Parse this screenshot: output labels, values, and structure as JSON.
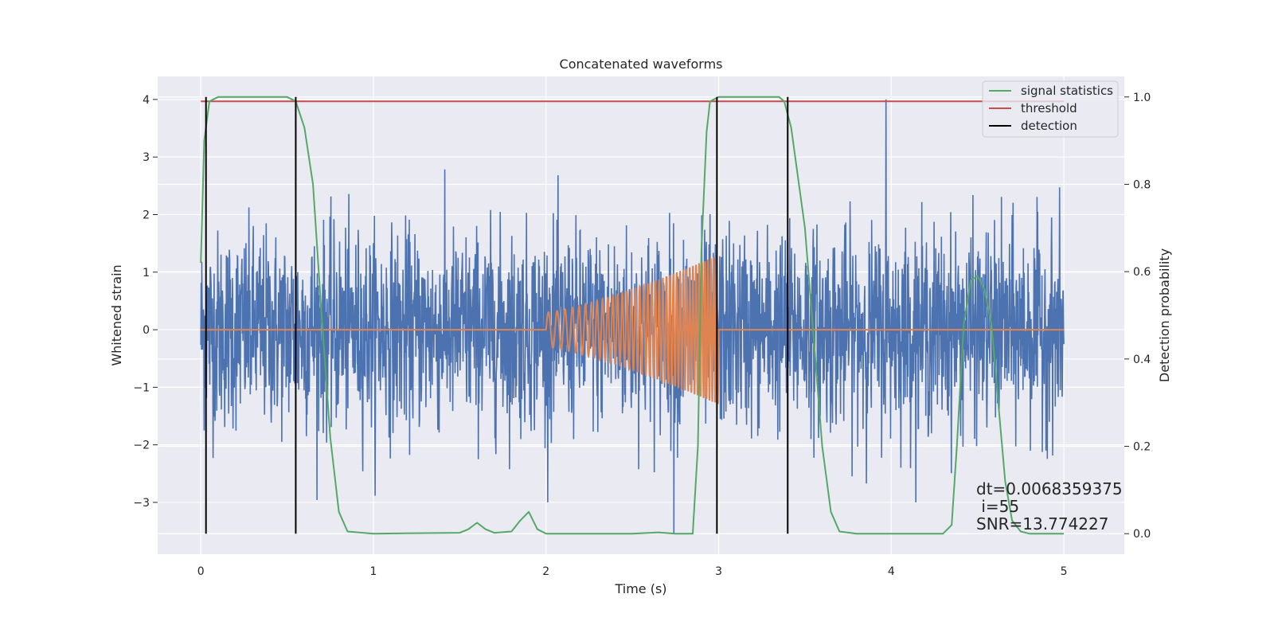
{
  "chart_data": {
    "type": "line",
    "title": "Concatenated waveforms",
    "xlabel": "Time (s)",
    "ylabel": "Whitened strain",
    "y2label": "Detection probability",
    "xlim": [
      -0.25,
      5.35
    ],
    "ylim": [
      -3.9,
      4.4
    ],
    "y2lim": [
      -0.047,
      1.047
    ],
    "x_ticks": [
      0,
      1,
      2,
      3,
      4,
      5
    ],
    "y_ticks": [
      -3,
      -2,
      -1,
      0,
      1,
      2,
      3,
      4
    ],
    "y2_ticks": [
      0.0,
      0.2,
      0.4,
      0.6,
      0.8,
      1.0
    ],
    "x_tick_labels": [
      "0",
      "1",
      "2",
      "3",
      "4",
      "5"
    ],
    "y_tick_labels": [
      "−3",
      "−2",
      "−1",
      "0",
      "1",
      "2",
      "3",
      "4"
    ],
    "y2_tick_labels": [
      "0.0",
      "0.2",
      "0.4",
      "0.6",
      "0.8",
      "1.0"
    ],
    "grid": true,
    "legend_position": "top-right",
    "series": [
      {
        "name": "",
        "axis": "left",
        "color": "#4c72b0",
        "kind": "noise",
        "x_range": [
          0,
          5
        ],
        "amplitude_peak": 4.0,
        "amplitude_min": -3.55
      },
      {
        "name": "",
        "axis": "left",
        "color": "#dd8452",
        "kind": "chirp",
        "baseline": 0,
        "chirp_x_range": [
          2.0,
          3.0
        ],
        "amplitude_start": 0.3,
        "amplitude_end": 1.3
      },
      {
        "name": "signal statistics",
        "axis": "right",
        "color": "#55a868",
        "x": [
          0.0,
          0.02,
          0.05,
          0.1,
          0.5,
          0.55,
          0.6,
          0.65,
          0.7,
          0.75,
          0.8,
          0.85,
          1.0,
          1.5,
          1.55,
          1.6,
          1.65,
          1.7,
          1.8,
          1.85,
          1.9,
          1.95,
          2.0,
          2.5,
          2.65,
          2.75,
          2.85,
          2.88,
          2.9,
          2.93,
          2.95,
          3.0,
          3.35,
          3.38,
          3.42,
          3.5,
          3.55,
          3.6,
          3.65,
          3.7,
          3.8,
          4.3,
          4.35,
          4.38,
          4.42,
          4.46,
          4.5,
          4.54,
          4.58,
          4.62,
          4.66,
          4.7,
          4.75,
          4.8,
          5.0
        ],
        "y": [
          0.62,
          0.9,
          0.99,
          1.0,
          1.0,
          0.99,
          0.93,
          0.8,
          0.5,
          0.22,
          0.05,
          0.005,
          0.0,
          0.002,
          0.01,
          0.025,
          0.01,
          0.002,
          0.005,
          0.03,
          0.05,
          0.01,
          0.0,
          0.0,
          0.003,
          0.0,
          0.0,
          0.2,
          0.65,
          0.92,
          0.99,
          1.0,
          1.0,
          0.99,
          0.93,
          0.7,
          0.45,
          0.2,
          0.05,
          0.005,
          0.0,
          0.0,
          0.02,
          0.2,
          0.48,
          0.58,
          0.59,
          0.56,
          0.48,
          0.3,
          0.12,
          0.03,
          0.005,
          0.0,
          0.0
        ]
      },
      {
        "name": "threshold",
        "axis": "right",
        "color": "#c44e52",
        "x": [
          0,
          5
        ],
        "y": [
          0.99,
          0.99
        ]
      },
      {
        "name": "detection",
        "axis": "right",
        "color": "#000000",
        "kind": "vlines",
        "x": [
          0.03,
          0.55,
          2.99,
          3.4
        ],
        "y_range": [
          0.0,
          1.0
        ]
      }
    ],
    "annotations": [
      "dt=0.0068359375",
      " i=55",
      "SNR=13.774227"
    ]
  }
}
